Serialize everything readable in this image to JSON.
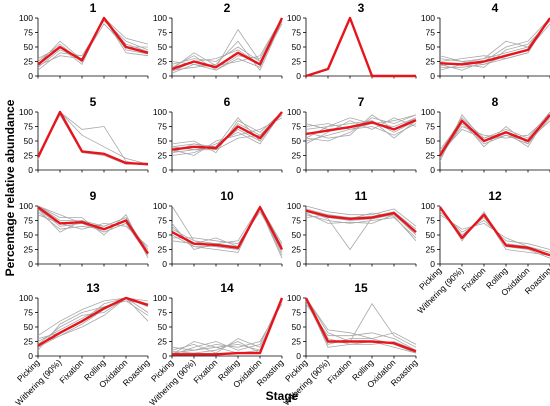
{
  "chart_data": {
    "type": "line",
    "xlabel": "Stage",
    "ylabel": "Percentage relative abundance",
    "categories": [
      "Picking",
      "Withering (90%)",
      "Fixation",
      "Rolling",
      "Oxidation",
      "Roasting"
    ],
    "ylim": [
      0,
      100
    ],
    "yticks": [
      0,
      25,
      50,
      75,
      100
    ],
    "grid": false,
    "colors": {
      "trend": "#e8141c",
      "members": "#a8a8a8"
    },
    "panels": [
      {
        "id": "1",
        "trend": [
          20,
          50,
          27,
          100,
          50,
          40
        ],
        "members": [
          [
            15,
            45,
            30,
            100,
            45,
            38
          ],
          [
            25,
            55,
            24,
            98,
            55,
            42
          ],
          [
            10,
            40,
            35,
            95,
            60,
            45
          ],
          [
            30,
            50,
            20,
            100,
            40,
            35
          ],
          [
            20,
            60,
            28,
            90,
            50,
            50
          ],
          [
            18,
            35,
            30,
            100,
            65,
            55
          ]
        ]
      },
      {
        "id": "2",
        "trend": [
          12,
          25,
          15,
          40,
          20,
          100
        ],
        "members": [
          [
            5,
            20,
            10,
            30,
            15,
            100
          ],
          [
            20,
            30,
            25,
            50,
            25,
            100
          ],
          [
            10,
            15,
            20,
            60,
            10,
            95
          ],
          [
            15,
            35,
            10,
            35,
            30,
            100
          ],
          [
            8,
            25,
            30,
            45,
            20,
            90
          ],
          [
            25,
            20,
            15,
            80,
            25,
            100
          ],
          [
            12,
            40,
            18,
            25,
            35,
            100
          ]
        ]
      },
      {
        "id": "3",
        "trend": [
          0,
          12,
          100,
          0,
          0,
          0
        ],
        "members": []
      },
      {
        "id": "4",
        "trend": [
          22,
          20,
          25,
          35,
          45,
          100
        ],
        "members": [
          [
            15,
            15,
            20,
            30,
            40,
            100
          ],
          [
            30,
            25,
            30,
            40,
            50,
            100
          ],
          [
            10,
            20,
            15,
            45,
            55,
            95
          ],
          [
            25,
            30,
            35,
            30,
            40,
            100
          ],
          [
            20,
            10,
            25,
            50,
            60,
            100
          ],
          [
            35,
            25,
            20,
            35,
            45,
            90
          ],
          [
            18,
            22,
            30,
            60,
            50,
            100
          ]
        ]
      },
      {
        "id": "5",
        "trend": [
          22,
          100,
          32,
          28,
          12,
          10
        ],
        "members": [
          [
            20,
            100,
            70,
            75,
            15,
            8
          ],
          [
            25,
            95,
            30,
            25,
            10,
            12
          ],
          [
            18,
            100,
            60,
            40,
            20,
            10
          ]
        ]
      },
      {
        "id": "6",
        "trend": [
          35,
          40,
          38,
          75,
          55,
          100
        ],
        "members": [
          [
            30,
            35,
            40,
            70,
            50,
            100
          ],
          [
            40,
            45,
            35,
            80,
            60,
            95
          ],
          [
            25,
            30,
            45,
            65,
            45,
            100
          ],
          [
            45,
            50,
            30,
            85,
            65,
            100
          ],
          [
            35,
            25,
            50,
            60,
            70,
            90
          ],
          [
            30,
            45,
            40,
            90,
            50,
            100
          ],
          [
            40,
            35,
            35,
            55,
            60,
            100
          ]
        ]
      },
      {
        "id": "7",
        "trend": [
          62,
          68,
          74,
          82,
          70,
          86
        ],
        "members": [
          [
            50,
            60,
            70,
            80,
            75,
            90
          ],
          [
            70,
            75,
            80,
            85,
            65,
            85
          ],
          [
            55,
            50,
            65,
            90,
            80,
            95
          ],
          [
            75,
            80,
            70,
            75,
            60,
            80
          ],
          [
            45,
            65,
            85,
            70,
            90,
            75
          ],
          [
            65,
            55,
            60,
            95,
            70,
            90
          ],
          [
            80,
            70,
            75,
            85,
            55,
            85
          ],
          [
            55,
            75,
            90,
            80,
            85,
            95
          ]
        ]
      },
      {
        "id": "8",
        "trend": [
          25,
          85,
          50,
          65,
          50,
          95
        ],
        "members": [
          [
            20,
            80,
            45,
            60,
            45,
            90
          ],
          [
            30,
            90,
            55,
            70,
            55,
            100
          ],
          [
            25,
            75,
            60,
            55,
            60,
            95
          ],
          [
            35,
            85,
            40,
            75,
            45,
            100
          ],
          [
            15,
            95,
            50,
            60,
            50,
            85
          ],
          [
            28,
            70,
            55,
            65,
            40,
            100
          ]
        ]
      },
      {
        "id": "9",
        "trend": [
          98,
          70,
          72,
          60,
          75,
          18
        ],
        "members": [
          [
            95,
            65,
            70,
            55,
            70,
            15
          ],
          [
            100,
            75,
            75,
            65,
            80,
            20
          ],
          [
            90,
            60,
            65,
            60,
            75,
            25
          ],
          [
            100,
            80,
            80,
            50,
            85,
            10
          ],
          [
            85,
            70,
            60,
            70,
            65,
            30
          ],
          [
            95,
            55,
            75,
            55,
            70,
            15
          ],
          [
            100,
            85,
            70,
            65,
            80,
            20
          ]
        ]
      },
      {
        "id": "10",
        "trend": [
          55,
          35,
          33,
          28,
          98,
          25
        ],
        "members": [
          [
            50,
            30,
            30,
            25,
            95,
            20
          ],
          [
            60,
            40,
            35,
            30,
            100,
            30
          ],
          [
            45,
            45,
            40,
            35,
            90,
            25
          ],
          [
            65,
            30,
            25,
            20,
            100,
            35
          ],
          [
            40,
            35,
            45,
            30,
            95,
            15
          ],
          [
            70,
            25,
            35,
            40,
            100,
            30
          ],
          [
            100,
            40,
            30,
            25,
            95,
            10
          ]
        ]
      },
      {
        "id": "11",
        "trend": [
          92,
          82,
          78,
          80,
          88,
          55
        ],
        "members": [
          [
            90,
            80,
            75,
            78,
            85,
            50
          ],
          [
            95,
            85,
            80,
            82,
            90,
            60
          ],
          [
            85,
            75,
            70,
            75,
            80,
            45
          ],
          [
            100,
            90,
            85,
            85,
            95,
            65
          ],
          [
            88,
            70,
            72,
            70,
            85,
            55
          ],
          [
            92,
            78,
            25,
            80,
            90,
            50
          ],
          [
            80,
            85,
            78,
            88,
            82,
            40
          ]
        ]
      },
      {
        "id": "12",
        "trend": [
          98,
          45,
          85,
          32,
          28,
          15
        ],
        "members": [
          [
            95,
            50,
            80,
            35,
            30,
            20
          ],
          [
            100,
            40,
            90,
            30,
            25,
            10
          ],
          [
            90,
            55,
            75,
            40,
            35,
            25
          ],
          [
            100,
            45,
            85,
            25,
            20,
            15
          ],
          [
            85,
            60,
            70,
            45,
            30,
            20
          ]
        ]
      },
      {
        "id": "13",
        "trend": [
          18,
          40,
          60,
          82,
          100,
          88
        ],
        "members": [
          [
            15,
            35,
            55,
            80,
            100,
            85
          ],
          [
            25,
            45,
            65,
            85,
            95,
            90
          ],
          [
            20,
            50,
            70,
            75,
            100,
            75
          ],
          [
            30,
            40,
            60,
            90,
            100,
            95
          ],
          [
            10,
            55,
            75,
            85,
            95,
            70
          ],
          [
            20,
            35,
            50,
            70,
            100,
            60
          ],
          [
            35,
            60,
            80,
            95,
            100,
            90
          ]
        ]
      },
      {
        "id": "14",
        "trend": [
          3,
          3,
          3,
          5,
          5,
          100
        ],
        "members": [
          [
            5,
            10,
            15,
            20,
            10,
            100
          ],
          [
            10,
            20,
            5,
            30,
            15,
            95
          ],
          [
            2,
            15,
            25,
            10,
            20,
            100
          ],
          [
            8,
            5,
            10,
            25,
            5,
            100
          ],
          [
            15,
            10,
            20,
            15,
            25,
            90
          ],
          [
            3,
            25,
            15,
            5,
            10,
            100
          ]
        ]
      },
      {
        "id": "15",
        "trend": [
          100,
          25,
          25,
          25,
          22,
          8
        ],
        "members": [
          [
            100,
            30,
            20,
            20,
            25,
            10
          ],
          [
            95,
            20,
            30,
            30,
            20,
            5
          ],
          [
            100,
            40,
            25,
            90,
            35,
            15
          ],
          [
            90,
            35,
            35,
            40,
            30,
            10
          ],
          [
            100,
            15,
            20,
            25,
            15,
            5
          ],
          [
            100,
            45,
            40,
            30,
            40,
            20
          ]
        ]
      }
    ]
  }
}
